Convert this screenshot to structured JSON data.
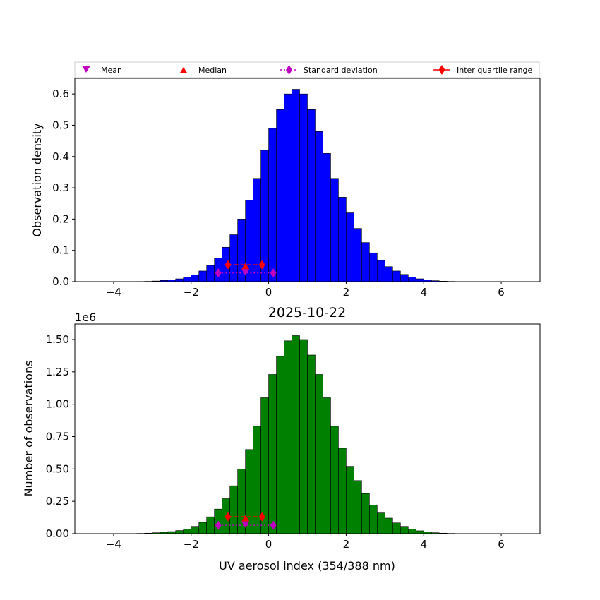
{
  "legend": {
    "mean": "Mean",
    "median": "Median",
    "std": "Standard deviation",
    "iqr": "Inter quartile range"
  },
  "colors": {
    "top_bars": "#0000ff",
    "bottom_bars": "#008000",
    "mean_marker": "#bf00bf",
    "median_marker": "#ff0000",
    "std_marker": "#bf00bf",
    "iqr_marker": "#ff0000",
    "bar_edge": "#000000"
  },
  "chart_data": [
    {
      "type": "bar",
      "name": "density-histogram",
      "title": "",
      "xlabel": "",
      "ylabel": "Observation density",
      "xlim": [
        -5,
        7
      ],
      "ylim": [
        0,
        0.65
      ],
      "x_ticks": [
        -4,
        -2,
        0,
        2,
        4,
        6
      ],
      "x_tick_labels": [
        "−4",
        "−2",
        "0",
        "2",
        "4",
        "6"
      ],
      "y_ticks": [
        0,
        0.1,
        0.2,
        0.3,
        0.4,
        0.5,
        0.6
      ],
      "y_tick_labels": [
        "0.0",
        "0.1",
        "0.2",
        "0.3",
        "0.4",
        "0.5",
        "0.6"
      ],
      "bin_width": 0.2,
      "bin_start": -3.4,
      "values": [
        0.0005,
        0.001,
        0.002,
        0.004,
        0.006,
        0.009,
        0.014,
        0.022,
        0.034,
        0.052,
        0.076,
        0.11,
        0.15,
        0.2,
        0.26,
        0.33,
        0.42,
        0.49,
        0.55,
        0.6,
        0.615,
        0.6,
        0.55,
        0.48,
        0.41,
        0.33,
        0.27,
        0.22,
        0.17,
        0.125,
        0.092,
        0.068,
        0.048,
        0.034,
        0.023,
        0.015,
        0.009,
        0.005,
        0.003,
        0.0015,
        0.0008
      ],
      "stats": {
        "mean": {
          "x": -0.6,
          "y": 0.03
        },
        "median": {
          "x": -0.6,
          "y": 0.05
        },
        "iqr": {
          "x": [
            -1.05,
            -0.17
          ],
          "y": 0.054
        },
        "std": {
          "x": [
            -1.3,
            0.12
          ],
          "y": 0.028
        }
      }
    },
    {
      "type": "bar",
      "name": "count-histogram",
      "title": "2025-10-22",
      "xlabel": "UV aerosol index (354/388 nm)",
      "ylabel": "Number of observations",
      "scale_label": "1e6",
      "xlim": [
        -5,
        7
      ],
      "ylim": [
        0,
        1.62
      ],
      "x_ticks": [
        -4,
        -2,
        0,
        2,
        4,
        6
      ],
      "x_tick_labels": [
        "−4",
        "−2",
        "0",
        "2",
        "4",
        "6"
      ],
      "y_ticks": [
        0,
        0.25,
        0.5,
        0.75,
        1.0,
        1.25,
        1.5
      ],
      "y_tick_labels": [
        "0.00",
        "0.25",
        "0.50",
        "0.75",
        "1.00",
        "1.25",
        "1.50"
      ],
      "bin_width": 0.2,
      "bin_start": -3.4,
      "values": [
        0.002,
        0.004,
        0.007,
        0.011,
        0.016,
        0.024,
        0.036,
        0.056,
        0.087,
        0.13,
        0.19,
        0.27,
        0.37,
        0.5,
        0.65,
        0.83,
        1.05,
        1.23,
        1.37,
        1.49,
        1.53,
        1.5,
        1.38,
        1.23,
        1.05,
        0.83,
        0.66,
        0.52,
        0.41,
        0.31,
        0.22,
        0.16,
        0.12,
        0.083,
        0.056,
        0.036,
        0.022,
        0.013,
        0.007,
        0.004,
        0.002
      ],
      "stats": {
        "mean": {
          "x": -0.6,
          "y": 0.07
        },
        "median": {
          "x": -0.6,
          "y": 0.12
        },
        "iqr": {
          "x": [
            -1.05,
            -0.17
          ],
          "y": 0.13
        },
        "std": {
          "x": [
            -1.3,
            0.12
          ],
          "y": 0.065
        }
      }
    }
  ]
}
